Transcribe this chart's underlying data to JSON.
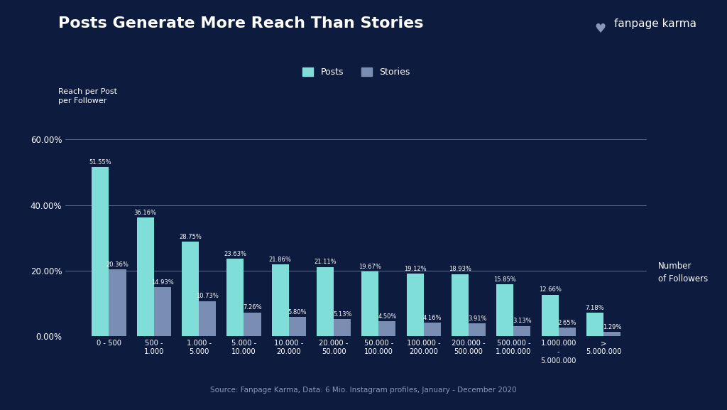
{
  "title": "Posts Generate More Reach Than Stories",
  "ylabel": "Reach per Post\nper Follower",
  "xlabel_right": "Number\nof Followers",
  "source": "Source: Fanpage Karma, Data: 6 Mio. Instagram profiles, January - December 2020",
  "background_color": "#0d1b3e",
  "bar_color_posts": "#7fded8",
  "bar_color_stories": "#7a8db3",
  "grid_color": "#6b7a9a",
  "text_color": "#ffffff",
  "categories": [
    "0 - 500",
    "500 -\n1.000",
    "1.000 -\n5.000",
    "5.000 -\n10.000",
    "10.000 -\n20.000",
    "20.000 -\n50.000",
    "50.000 -\n100.000",
    "100.000 -\n200.000",
    "200.000 -\n500.000",
    "500.000 -\n1.000.000",
    "1.000.000\n-\n5.000.000",
    ">\n5.000.000"
  ],
  "posts": [
    51.55,
    36.16,
    28.75,
    23.63,
    21.86,
    21.11,
    19.67,
    19.12,
    18.93,
    15.85,
    12.66,
    7.18
  ],
  "stories": [
    20.36,
    14.93,
    10.73,
    7.26,
    5.8,
    5.13,
    4.5,
    4.16,
    3.91,
    3.13,
    2.65,
    1.29
  ],
  "ylim": [
    0,
    65
  ],
  "yticks": [
    0,
    20,
    40,
    60
  ],
  "ytick_labels": [
    "0.00%",
    "20.00%",
    "40.00%",
    "60.00%"
  ],
  "legend_labels": [
    "Posts",
    "Stories"
  ]
}
